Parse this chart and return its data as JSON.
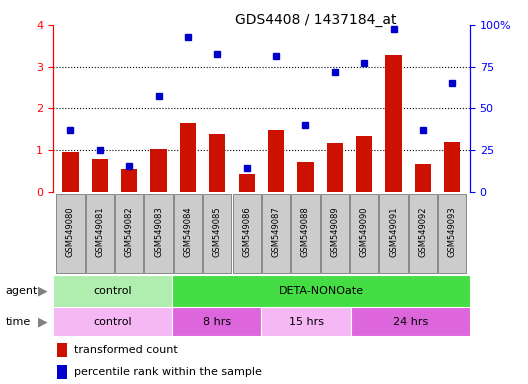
{
  "title": "GDS4408 / 1437184_at",
  "samples": [
    "GSM549080",
    "GSM549081",
    "GSM549082",
    "GSM549083",
    "GSM549084",
    "GSM549085",
    "GSM549086",
    "GSM549087",
    "GSM549088",
    "GSM549089",
    "GSM549090",
    "GSM549091",
    "GSM549092",
    "GSM549093"
  ],
  "red_values": [
    0.95,
    0.78,
    0.55,
    1.02,
    1.65,
    1.38,
    0.43,
    1.48,
    0.73,
    1.18,
    1.35,
    3.27,
    0.68,
    1.2
  ],
  "blue_values": [
    1.48,
    1.0,
    0.62,
    2.3,
    3.7,
    3.3,
    0.58,
    3.25,
    1.6,
    2.88,
    3.1,
    3.9,
    1.48,
    2.6
  ],
  "red_ylim": [
    0,
    4
  ],
  "red_yticks": [
    0,
    1,
    2,
    3,
    4
  ],
  "blue_yticks_labels": [
    "0",
    "25",
    "50",
    "75",
    "100%"
  ],
  "agent_groups": [
    {
      "label": "control",
      "start": 0,
      "end": 4,
      "color": "#B0EEB0"
    },
    {
      "label": "DETA-NONOate",
      "start": 4,
      "end": 14,
      "color": "#44DD44"
    }
  ],
  "time_groups": [
    {
      "label": "control",
      "start": 0,
      "end": 4,
      "color": "#F5B8F5"
    },
    {
      "label": "8 hrs",
      "start": 4,
      "end": 7,
      "color": "#DD66DD"
    },
    {
      "label": "15 hrs",
      "start": 7,
      "end": 10,
      "color": "#F5B8F5"
    },
    {
      "label": "24 hrs",
      "start": 10,
      "end": 14,
      "color": "#DD66DD"
    }
  ],
  "bar_color": "#CC1100",
  "dot_color": "#0000CC",
  "legend_red": "transformed count",
  "legend_blue": "percentile rank within the sample",
  "agent_label": "agent",
  "time_label": "time",
  "plot_bg": "#FFFFFF",
  "label_box_color": "#CCCCCC",
  "label_box_edge": "#888888"
}
